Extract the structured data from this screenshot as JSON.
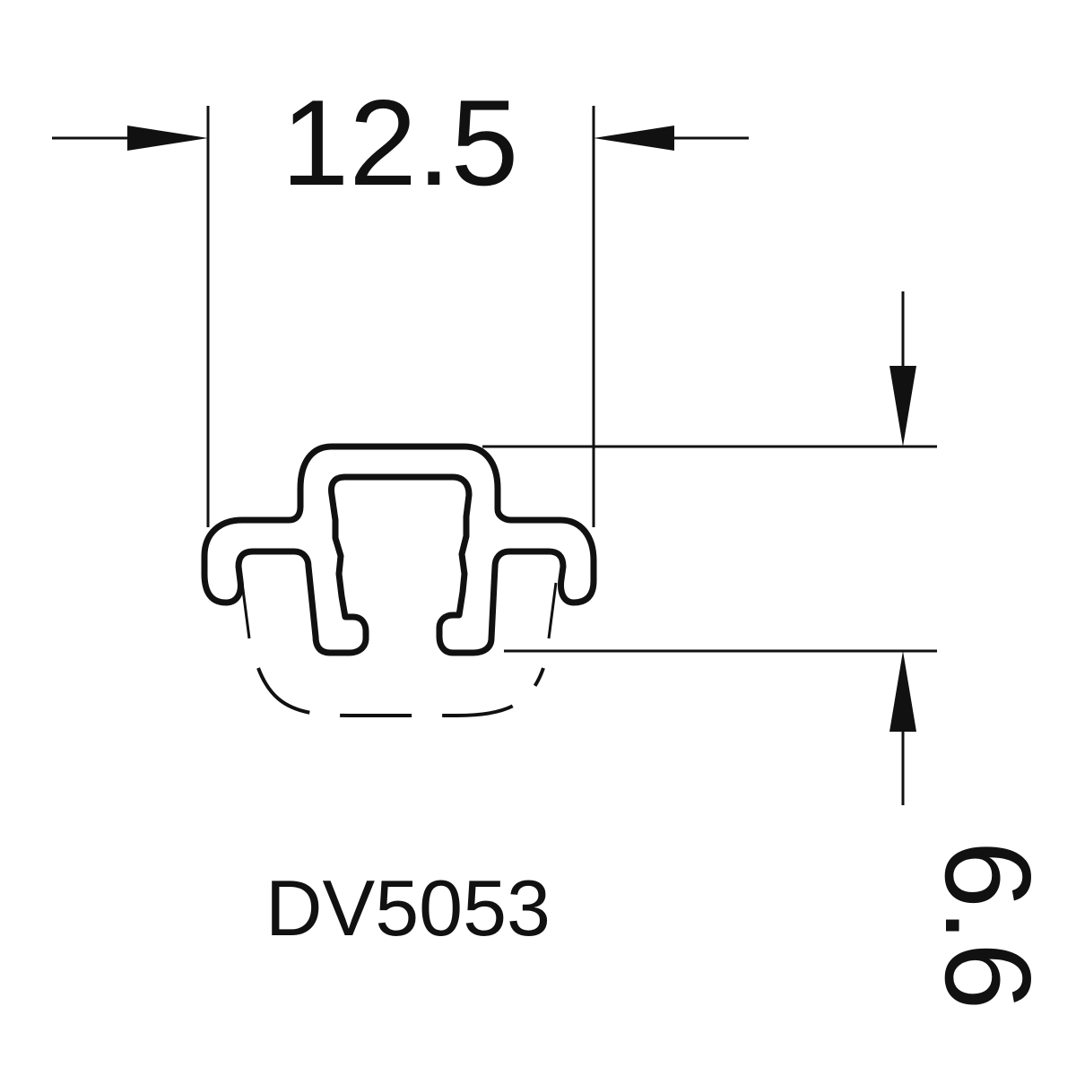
{
  "drawing": {
    "part_number": "DV5053",
    "dimensions": {
      "width_value": "12.5",
      "height_value": "6.6"
    },
    "colors": {
      "line": "#111111",
      "background": "#ffffff"
    }
  }
}
